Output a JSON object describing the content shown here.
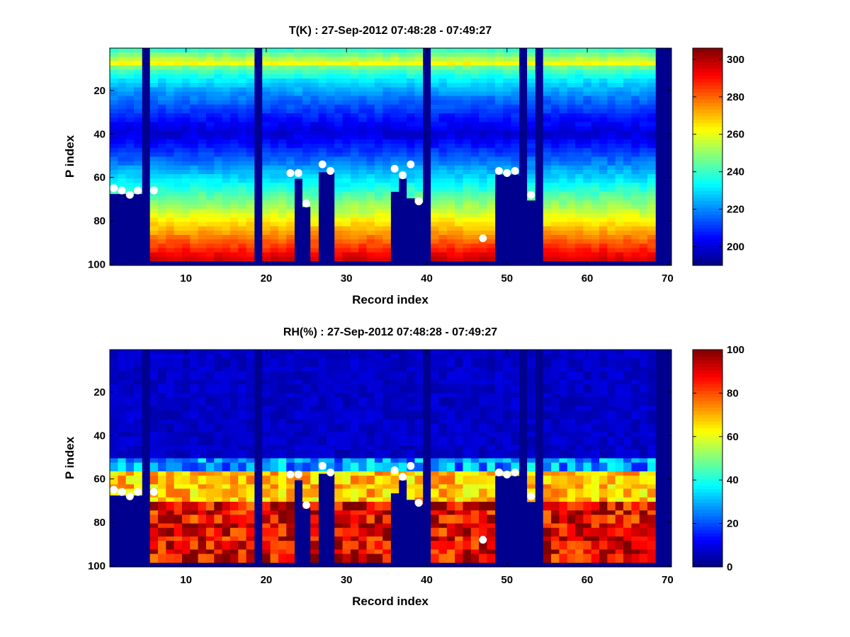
{
  "chart_data": [
    {
      "type": "heatmap",
      "title": "T(K) : 27-Sep-2012 07:48:28 - 07:49:27",
      "xlabel": "Record index",
      "ylabel": "P index",
      "xlim": [
        0.5,
        70.5
      ],
      "ylim": [
        0.5,
        100.5
      ],
      "y_reversed": true,
      "x_ticks": [
        10,
        20,
        30,
        40,
        50,
        60,
        70
      ],
      "y_ticks": [
        20,
        40,
        60,
        80,
        100
      ],
      "colormap": "jet",
      "clim": [
        190,
        306
      ],
      "colorbar_ticks": [
        200,
        220,
        240,
        260,
        280,
        300
      ],
      "records": [
        1,
        70
      ],
      "p_levels": [
        1,
        100
      ],
      "profile_fill_bottom": 98,
      "missing_records": [
        5,
        19,
        40,
        52,
        54,
        69,
        70
      ],
      "data_ceiling_by_record": {
        "1": 67,
        "2": 67,
        "3": 67,
        "4": 67,
        "24": 60,
        "25": 73,
        "27": 57,
        "28": 57,
        "36": 66,
        "37": 60,
        "38": 69,
        "39": 71,
        "49": 58,
        "50": 58,
        "51": 58,
        "53": 70
      },
      "data_floor_by_record": {
        "51": 96
      },
      "marker_points": {
        "x": [
          1,
          2,
          3,
          4,
          6,
          23,
          24,
          25,
          27,
          28,
          36,
          37,
          38,
          39,
          47,
          49,
          50,
          51,
          53
        ],
        "y": [
          65,
          66,
          68,
          66,
          66,
          58,
          58,
          72,
          54,
          57,
          56,
          59,
          54,
          71,
          88,
          57,
          58,
          57,
          68
        ]
      },
      "marker_color": "#ffffff",
      "missing_color": "#00008f",
      "profile_model": {
        "tropopause_p_index": 40,
        "top_value": 232,
        "peak_p_index": 8,
        "peak_value": 262,
        "tropopause_value": 200,
        "bottom_value": 300
      }
    },
    {
      "type": "heatmap",
      "title": "RH(%) : 27-Sep-2012 07:48:28 - 07:49:27",
      "xlabel": "Record index",
      "ylabel": "P index",
      "xlim": [
        0.5,
        70.5
      ],
      "ylim": [
        0.5,
        100.5
      ],
      "y_reversed": true,
      "x_ticks": [
        10,
        20,
        30,
        40,
        50,
        60,
        70
      ],
      "y_ticks": [
        20,
        40,
        60,
        80,
        100
      ],
      "colormap": "jet",
      "clim": [
        0,
        100
      ],
      "colorbar_ticks": [
        0,
        20,
        40,
        60,
        80,
        100
      ],
      "records": [
        1,
        70
      ],
      "p_levels": [
        1,
        100
      ],
      "profile_fill_bottom": 98,
      "missing_records": [
        5,
        19,
        40,
        52,
        54,
        69,
        70
      ],
      "data_ceiling_by_record": {
        "1": 67,
        "2": 67,
        "3": 67,
        "4": 67,
        "24": 60,
        "25": 73,
        "27": 57,
        "28": 57,
        "36": 66,
        "37": 60,
        "38": 69,
        "39": 71,
        "49": 58,
        "50": 58,
        "51": 58,
        "53": 70
      },
      "data_floor_by_record": {
        "51": 96
      },
      "marker_points": {
        "x": [
          1,
          2,
          3,
          4,
          6,
          23,
          24,
          25,
          27,
          28,
          36,
          37,
          38,
          39,
          47,
          49,
          50,
          51,
          53
        ],
        "y": [
          65,
          66,
          68,
          66,
          66,
          58,
          58,
          72,
          54,
          57,
          56,
          59,
          54,
          71,
          88,
          57,
          58,
          57,
          68
        ]
      },
      "marker_color": "#ffffff",
      "missing_color": "#00008f",
      "profile_model": {
        "dry_above_p_index": 52,
        "moist_layer_start": 57,
        "moist_layer_value": 68,
        "lower_layer_start": 72,
        "lower_layer_value": 90
      }
    }
  ]
}
